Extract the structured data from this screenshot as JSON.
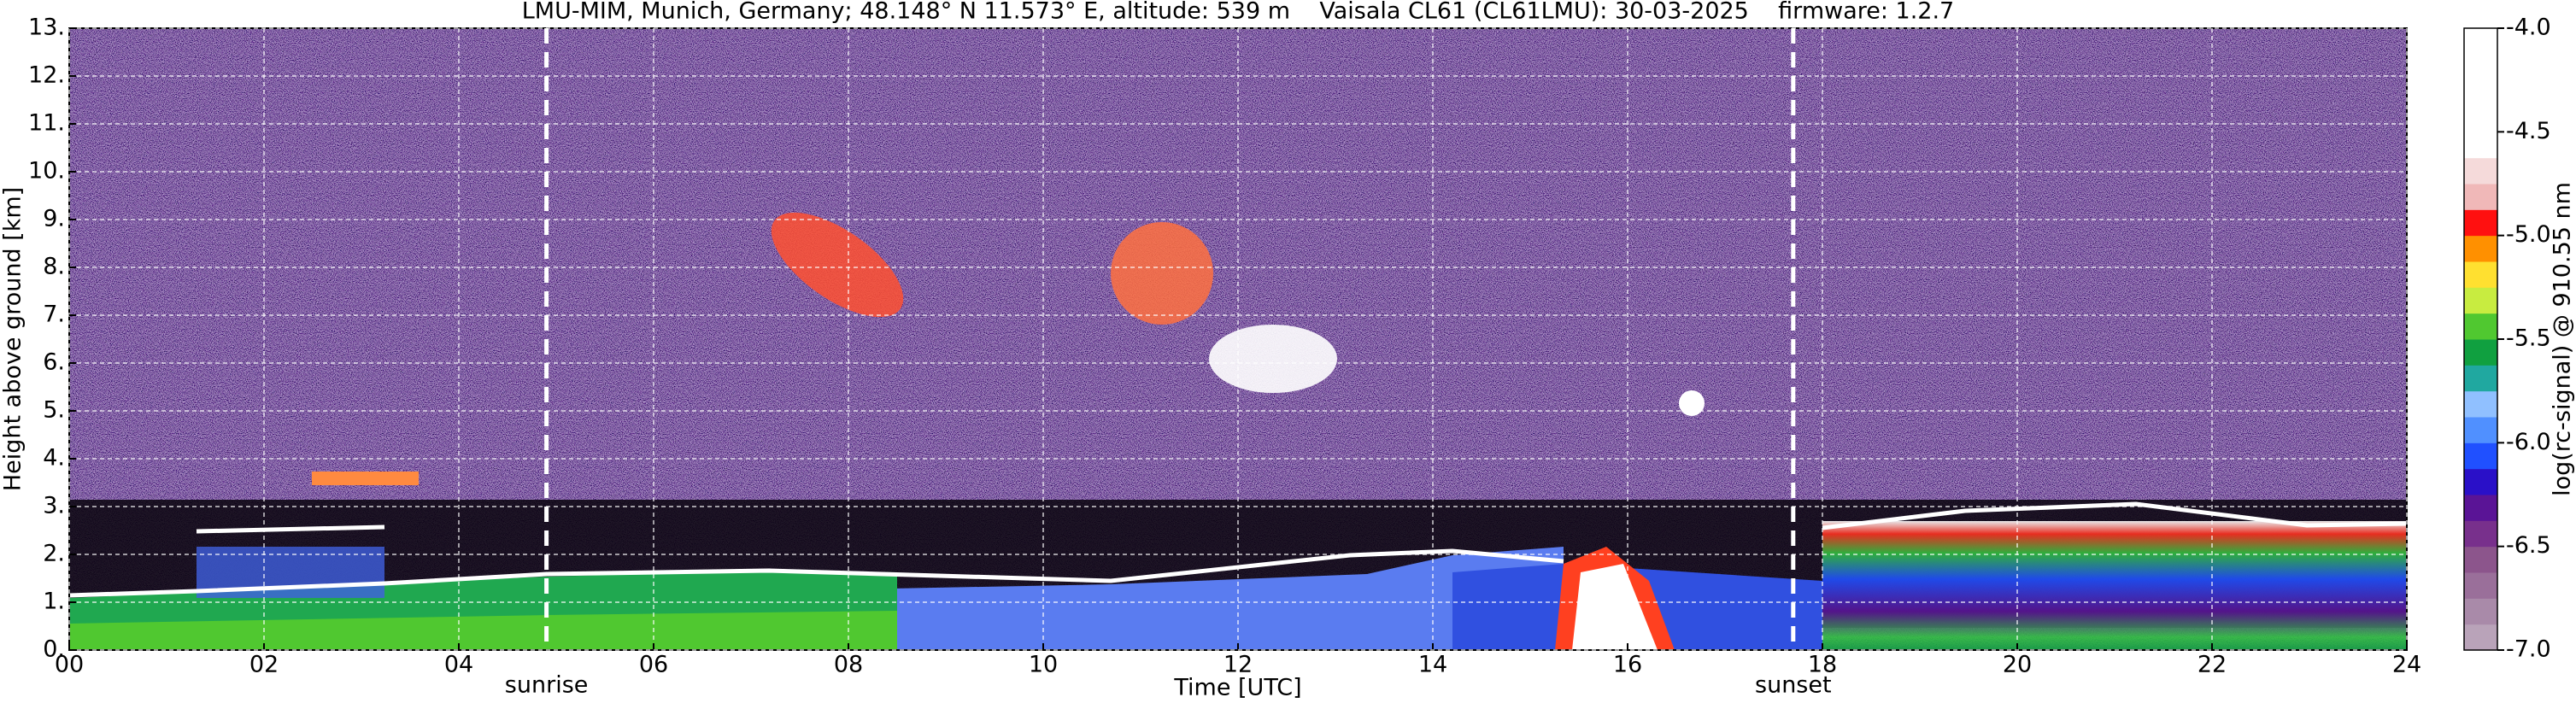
{
  "chart_data": {
    "type": "heatmap",
    "title": "LMU-MIM, Munich, Germany; 48.148° N 11.573° E, altitude: 539 m    Vaisala CL61 (CL61LMU): 30-03-2025    firmware: 1.2.7",
    "x_label": "Time [UTC]",
    "y_label": "Height above ground [km]",
    "colorbar_label": "log(rc-signal) @ 910.55 nm",
    "xlim": [
      0,
      24
    ],
    "xticks": [
      {
        "value": 0,
        "label": "00"
      },
      {
        "value": 2,
        "label": "02"
      },
      {
        "value": 4,
        "label": "04"
      },
      {
        "value": 6,
        "label": "06"
      },
      {
        "value": 8,
        "label": "08"
      },
      {
        "value": 10,
        "label": "10"
      },
      {
        "value": 12,
        "label": "12"
      },
      {
        "value": 14,
        "label": "14"
      },
      {
        "value": 16,
        "label": "16"
      },
      {
        "value": 18,
        "label": "18"
      },
      {
        "value": 20,
        "label": "20"
      },
      {
        "value": 22,
        "label": "22"
      },
      {
        "value": 24,
        "label": "24"
      }
    ],
    "ylim": [
      0,
      13
    ],
    "yticks": [
      {
        "value": 0,
        "label": "0."
      },
      {
        "value": 1,
        "label": "1."
      },
      {
        "value": 2,
        "label": "2."
      },
      {
        "value": 3,
        "label": "3."
      },
      {
        "value": 4,
        "label": "4."
      },
      {
        "value": 5,
        "label": "5."
      },
      {
        "value": 6,
        "label": "6."
      },
      {
        "value": 7,
        "label": "7."
      },
      {
        "value": 8,
        "label": "8."
      },
      {
        "value": 9,
        "label": "9."
      },
      {
        "value": 10,
        "label": "10."
      },
      {
        "value": 11,
        "label": "11."
      },
      {
        "value": 12,
        "label": "12."
      },
      {
        "value": 13,
        "label": "13."
      }
    ],
    "grid": true,
    "clim": [
      -7.0,
      -4.0
    ],
    "cticks": [
      {
        "value": -7.0,
        "label": "-7.0"
      },
      {
        "value": -6.5,
        "label": "-6.5"
      },
      {
        "value": -6.0,
        "label": "-6.0"
      },
      {
        "value": -5.5,
        "label": "-5.5"
      },
      {
        "value": -5.0,
        "label": "-5.0"
      },
      {
        "value": -4.5,
        "label": "-4.5"
      },
      {
        "value": -4.0,
        "label": "-4.0"
      }
    ],
    "colormap": [
      "#b9a3b9",
      "#a98aa9",
      "#9a6f9a",
      "#8c558c",
      "#78308c",
      "#5a1496",
      "#2a10c8",
      "#2050ff",
      "#5090ff",
      "#90c0ff",
      "#20a8a0",
      "#10a040",
      "#50c830",
      "#c8ec40",
      "#ffe030",
      "#ff9000",
      "#ff1010",
      "#f0b8b8",
      "#f5dada",
      "#ffffff",
      "#ffffff",
      "#ffffff",
      "#ffffff",
      "#ffffff"
    ],
    "annotations": [
      {
        "text": "sunrise",
        "x": 4.9
      },
      {
        "text": "sunset",
        "x": 17.7
      }
    ]
  }
}
